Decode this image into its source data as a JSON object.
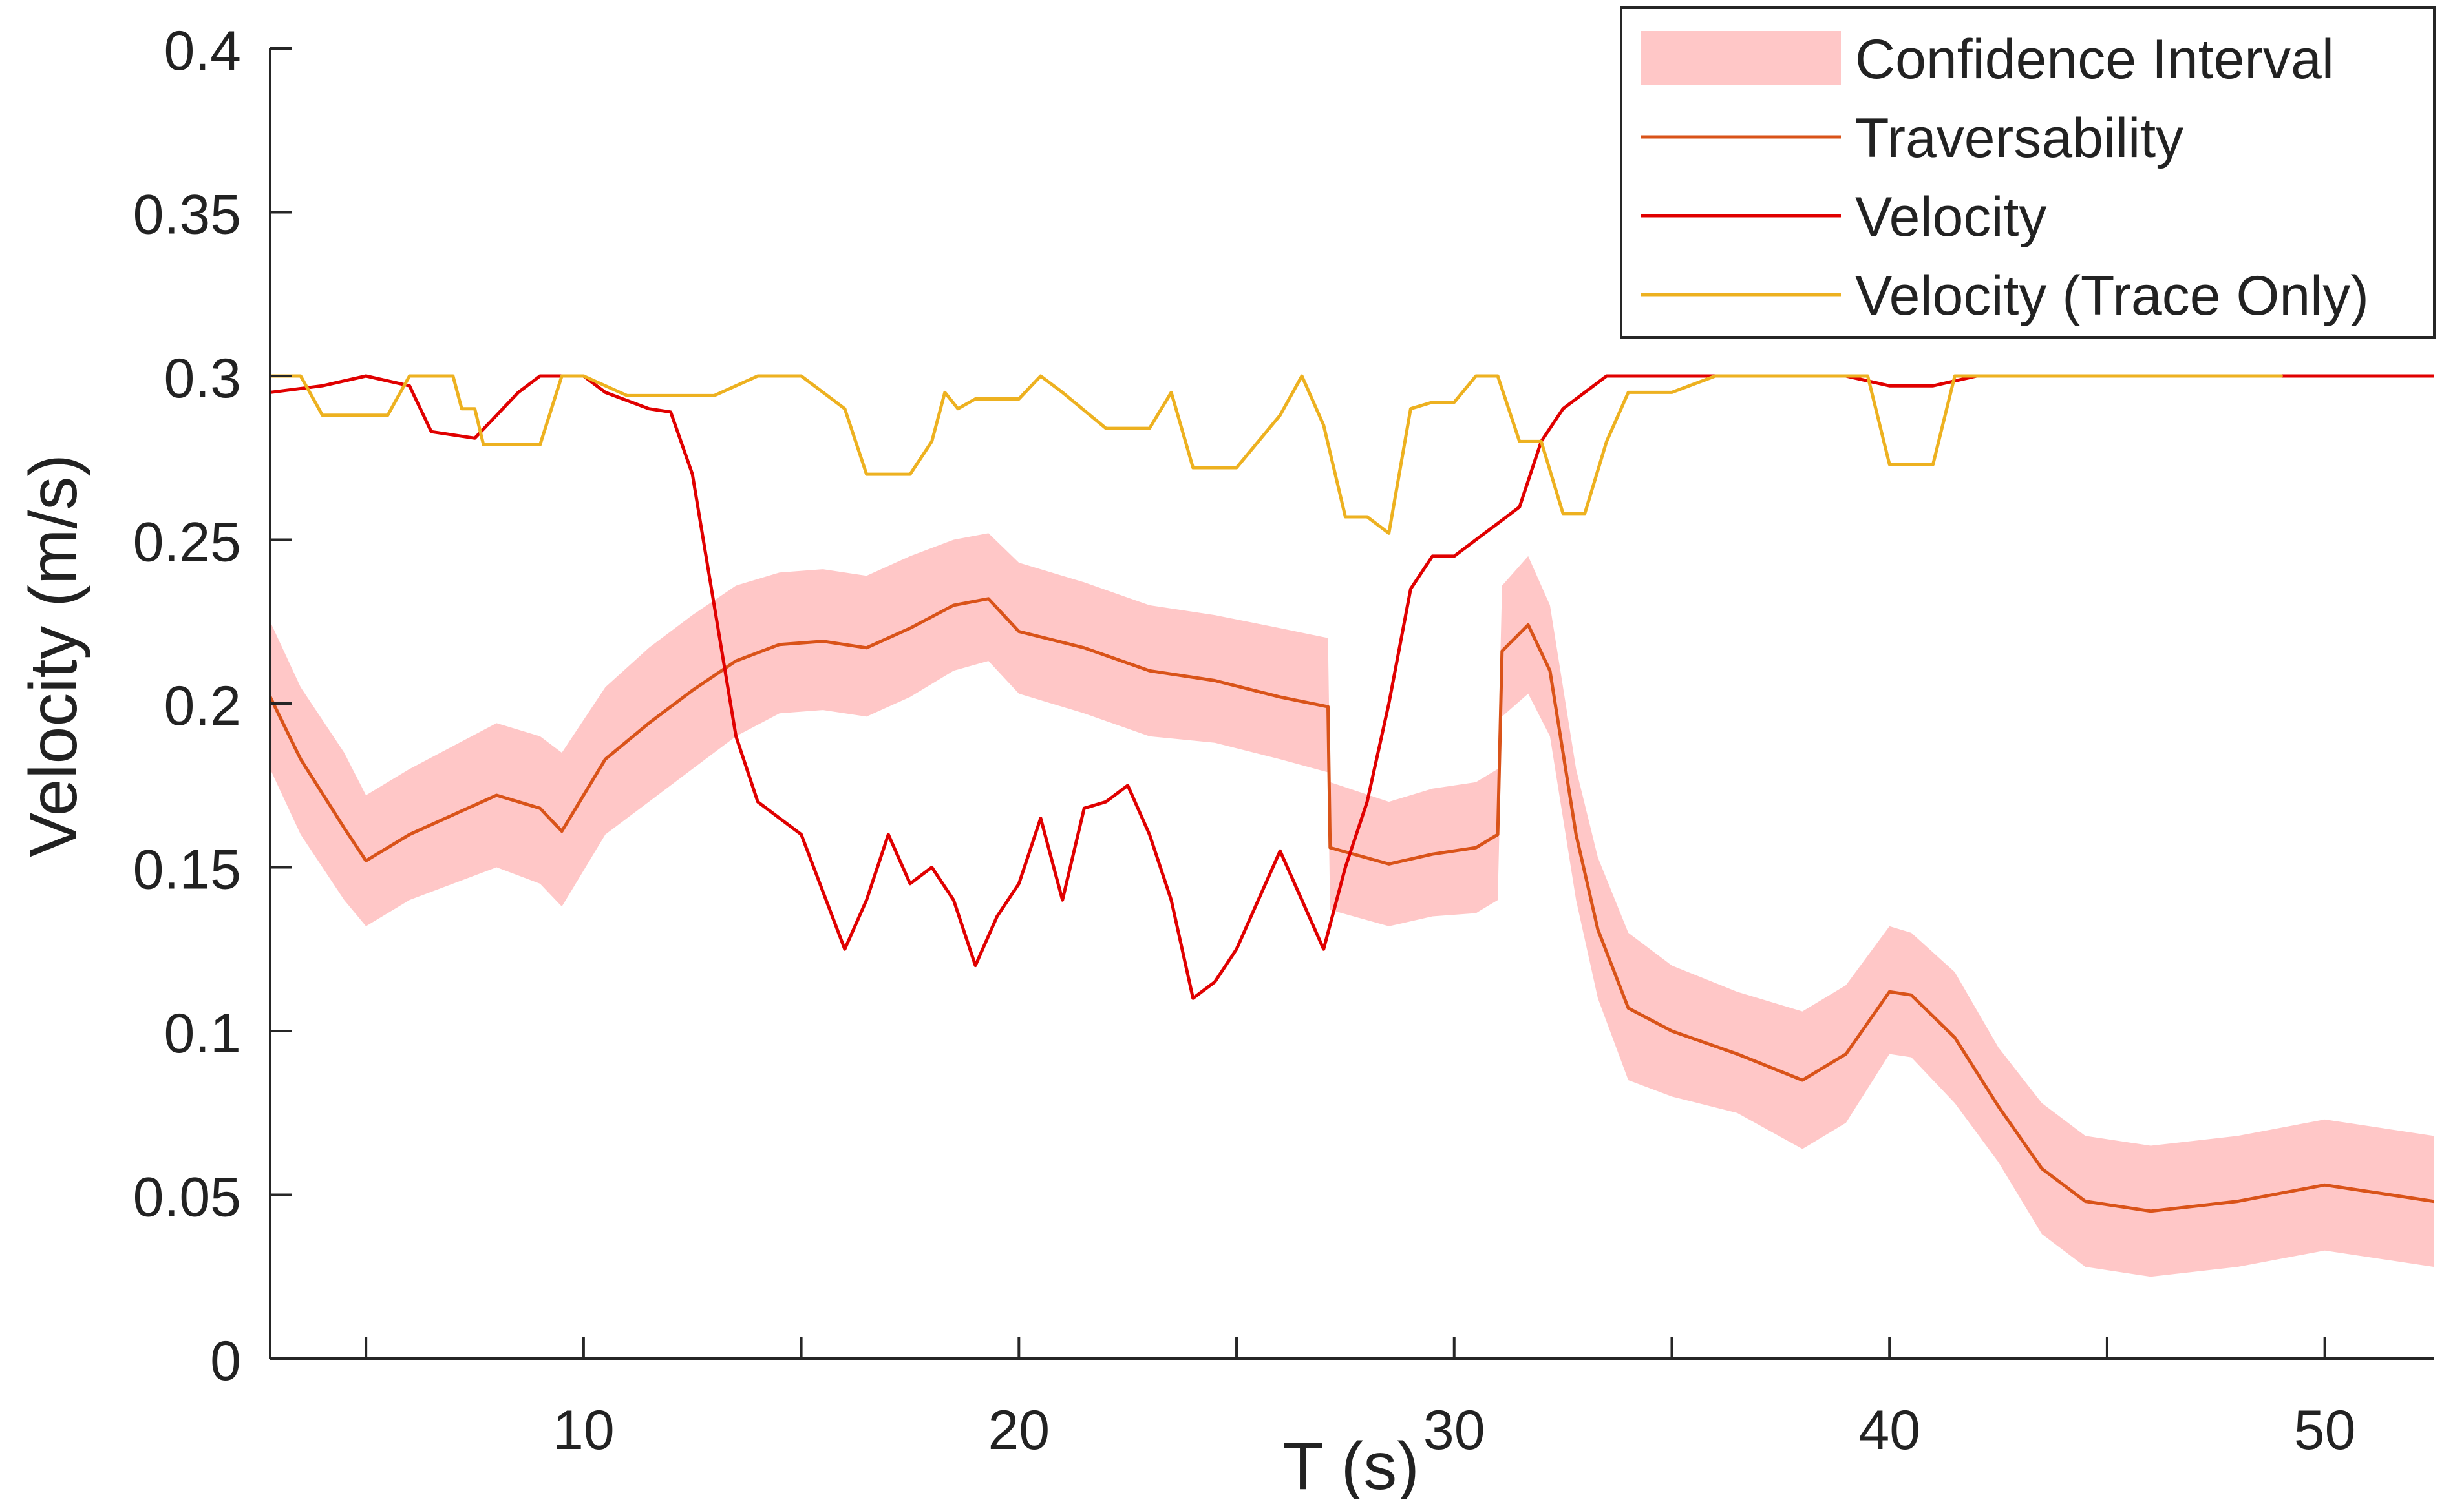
{
  "chart_data": {
    "type": "line",
    "title": "",
    "xlabel": "T (s)",
    "ylabel": "Velocity (m/s)",
    "xlim": [
      2.8,
      52.5
    ],
    "ylim": [
      0,
      0.4
    ],
    "x_ticks": [
      5,
      10,
      15,
      20,
      25,
      30,
      35,
      40,
      45,
      50
    ],
    "x_tick_labels": [
      "10",
      "20",
      "30",
      "40",
      "50"
    ],
    "x_tick_label_values": [
      10,
      20,
      30,
      40,
      50
    ],
    "y_ticks": [
      0,
      0.05,
      0.1,
      0.15,
      0.2,
      0.25,
      0.3,
      0.35,
      0.4
    ],
    "y_tick_labels": [
      "0",
      "0.05",
      "0.1",
      "0.15",
      "0.2",
      "0.25",
      "0.3",
      "0.35",
      "0.4"
    ],
    "grid": false,
    "legend_position": "top-right",
    "legend": [
      {
        "label": "Confidence Interval",
        "kind": "band",
        "color": "#FFC7C7"
      },
      {
        "label": "Traversability",
        "kind": "line",
        "color": "#D95319"
      },
      {
        "label": "Velocity",
        "kind": "line",
        "color": "#E00000"
      },
      {
        "label": "Velocity (Trace Only)",
        "kind": "line",
        "color": "#EDB120"
      }
    ],
    "series": [
      {
        "name": "Confidence Interval",
        "kind": "band",
        "color": "#FFC7C7",
        "x": [
          2.8,
          3.5,
          4.5,
          5.0,
          6.0,
          7.0,
          8.0,
          9.0,
          9.5,
          10.5,
          11.5,
          12.5,
          13.5,
          14.5,
          15.5,
          16.5,
          17.5,
          18.5,
          19.3,
          20.0,
          21.5,
          23.0,
          24.5,
          26.0,
          27.1,
          27.15,
          28.5,
          29.5,
          30.5,
          31.0,
          31.1,
          31.7,
          32.2,
          32.8,
          33.3,
          34.0,
          35.0,
          36.5,
          38.0,
          39.0,
          40.0,
          40.5,
          41.5,
          42.5,
          43.5,
          44.5,
          46.0,
          48.0,
          50.0,
          51.5,
          52.5
        ],
        "lower": [
          0.18,
          0.16,
          0.14,
          0.132,
          0.14,
          0.145,
          0.15,
          0.145,
          0.138,
          0.16,
          0.17,
          0.18,
          0.19,
          0.197,
          0.198,
          0.196,
          0.202,
          0.21,
          0.213,
          0.203,
          0.197,
          0.19,
          0.188,
          0.183,
          0.179,
          0.137,
          0.132,
          0.135,
          0.136,
          0.14,
          0.196,
          0.203,
          0.19,
          0.14,
          0.11,
          0.085,
          0.08,
          0.075,
          0.064,
          0.072,
          0.093,
          0.092,
          0.078,
          0.06,
          0.038,
          0.028,
          0.025,
          0.028,
          0.033,
          0.03,
          0.028
        ],
        "upper": [
          0.225,
          0.205,
          0.185,
          0.172,
          0.18,
          0.187,
          0.194,
          0.19,
          0.185,
          0.205,
          0.217,
          0.227,
          0.236,
          0.24,
          0.241,
          0.239,
          0.245,
          0.25,
          0.252,
          0.243,
          0.237,
          0.23,
          0.227,
          0.223,
          0.22,
          0.176,
          0.17,
          0.174,
          0.176,
          0.18,
          0.236,
          0.245,
          0.23,
          0.18,
          0.153,
          0.13,
          0.12,
          0.112,
          0.106,
          0.114,
          0.132,
          0.13,
          0.118,
          0.095,
          0.078,
          0.068,
          0.065,
          0.068,
          0.073,
          0.07,
          0.068
        ]
      },
      {
        "name": "Traversability",
        "kind": "line",
        "color": "#D95319",
        "x": [
          2.8,
          3.5,
          4.5,
          5.0,
          6.0,
          7.0,
          8.0,
          9.0,
          9.5,
          10.5,
          11.5,
          12.5,
          13.5,
          14.5,
          15.5,
          16.5,
          17.5,
          18.5,
          19.3,
          20.0,
          21.5,
          23.0,
          24.5,
          26.0,
          27.1,
          27.15,
          28.5,
          29.5,
          30.5,
          31.0,
          31.1,
          31.7,
          32.2,
          32.8,
          33.3,
          34.0,
          35.0,
          36.5,
          38.0,
          39.0,
          40.0,
          40.5,
          41.5,
          42.5,
          43.5,
          44.5,
          46.0,
          48.0,
          50.0,
          51.5,
          52.5
        ],
        "values": [
          0.202,
          0.183,
          0.162,
          0.152,
          0.16,
          0.166,
          0.172,
          0.168,
          0.161,
          0.183,
          0.194,
          0.204,
          0.213,
          0.218,
          0.219,
          0.217,
          0.223,
          0.23,
          0.232,
          0.222,
          0.217,
          0.21,
          0.207,
          0.202,
          0.199,
          0.156,
          0.151,
          0.154,
          0.156,
          0.16,
          0.216,
          0.224,
          0.21,
          0.16,
          0.131,
          0.107,
          0.1,
          0.093,
          0.085,
          0.093,
          0.112,
          0.111,
          0.098,
          0.077,
          0.058,
          0.048,
          0.045,
          0.048,
          0.053,
          0.05,
          0.048
        ]
      },
      {
        "name": "Velocity",
        "kind": "line",
        "color": "#E00000",
        "x": [
          2.8,
          4.0,
          5.0,
          6.0,
          6.5,
          7.5,
          8.5,
          9.0,
          10.0,
          10.5,
          11.5,
          12.0,
          12.5,
          13.0,
          13.5,
          14.0,
          15.0,
          16.0,
          16.5,
          17.0,
          17.5,
          18.0,
          18.5,
          19.0,
          19.5,
          20.0,
          20.5,
          21.0,
          21.5,
          22.0,
          22.5,
          23.0,
          23.5,
          24.0,
          24.5,
          25.0,
          25.5,
          26.0,
          26.5,
          27.0,
          27.5,
          28.0,
          28.5,
          29.0,
          29.5,
          30.0,
          30.5,
          31.0,
          31.5,
          32.0,
          32.5,
          33.0,
          33.5,
          34.0,
          35.0,
          38.0,
          39.0,
          40.0,
          41.0,
          42.0,
          46.0,
          50.0,
          52.5
        ],
        "values": [
          0.295,
          0.297,
          0.3,
          0.297,
          0.283,
          0.281,
          0.295,
          0.3,
          0.3,
          0.295,
          0.29,
          0.289,
          0.27,
          0.23,
          0.19,
          0.17,
          0.16,
          0.125,
          0.14,
          0.16,
          0.145,
          0.15,
          0.14,
          0.12,
          0.135,
          0.145,
          0.165,
          0.14,
          0.168,
          0.17,
          0.175,
          0.16,
          0.14,
          0.11,
          0.115,
          0.125,
          0.14,
          0.155,
          0.14,
          0.125,
          0.15,
          0.17,
          0.2,
          0.235,
          0.245,
          0.245,
          0.25,
          0.255,
          0.26,
          0.28,
          0.29,
          0.295,
          0.3,
          0.3,
          0.3,
          0.3,
          0.3,
          0.297,
          0.297,
          0.3,
          0.3,
          0.3,
          0.3
        ]
      },
      {
        "name": "Velocity (Trace Only)",
        "kind": "line",
        "color": "#EDB120",
        "x": [
          2.8,
          3.5,
          4.0,
          5.5,
          6.0,
          7.0,
          7.2,
          7.5,
          7.7,
          9.0,
          9.5,
          10.0,
          11.0,
          12.0,
          13.0,
          14.0,
          15.0,
          16.0,
          16.5,
          17.5,
          18.0,
          18.3,
          18.6,
          19.0,
          20.0,
          20.5,
          21.0,
          22.0,
          23.0,
          23.5,
          24.0,
          25.0,
          26.0,
          26.5,
          27.0,
          27.5,
          28.0,
          28.5,
          29.0,
          29.5,
          30.0,
          30.5,
          31.0,
          31.5,
          32.0,
          32.5,
          33.0,
          33.5,
          34.0,
          35.0,
          36.0,
          37.0,
          38.0,
          39.0,
          39.5,
          40.0,
          41.0,
          41.5,
          42.0,
          45.0,
          48.0,
          49.0
        ],
        "values": [
          0.3,
          0.3,
          0.288,
          0.288,
          0.3,
          0.3,
          0.29,
          0.29,
          0.279,
          0.279,
          0.3,
          0.3,
          0.294,
          0.294,
          0.294,
          0.3,
          0.3,
          0.29,
          0.27,
          0.27,
          0.28,
          0.295,
          0.29,
          0.293,
          0.293,
          0.3,
          0.295,
          0.284,
          0.284,
          0.295,
          0.272,
          0.272,
          0.288,
          0.3,
          0.285,
          0.257,
          0.257,
          0.252,
          0.29,
          0.292,
          0.292,
          0.3,
          0.3,
          0.28,
          0.28,
          0.258,
          0.258,
          0.28,
          0.295,
          0.295,
          0.3,
          0.3,
          0.3,
          0.3,
          0.3,
          0.273,
          0.273,
          0.3,
          0.3,
          0.3,
          0.3,
          0.3
        ]
      }
    ]
  }
}
